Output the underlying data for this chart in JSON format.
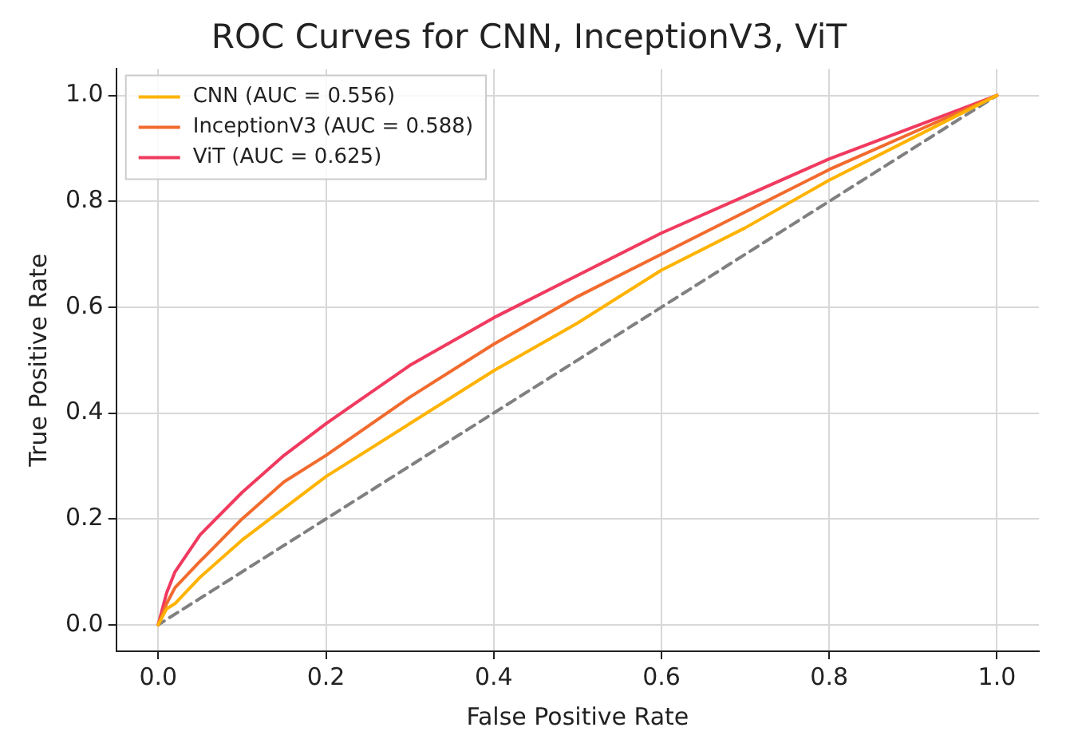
{
  "chart_data": {
    "type": "line",
    "title": "ROC Curves for CNN, InceptionV3, ViT",
    "xlabel": "False Positive Rate",
    "ylabel": "True Positive Rate",
    "x": [
      0,
      0.01,
      0.02,
      0.05,
      0.1,
      0.15,
      0.2,
      0.3,
      0.4,
      0.5,
      0.6,
      0.7,
      0.8,
      0.9,
      1
    ],
    "series": [
      {
        "name": "CNN (AUC = 0.556)",
        "color": "#ffb300",
        "values": [
          0,
          0.03,
          0.04,
          0.09,
          0.16,
          0.22,
          0.28,
          0.38,
          0.48,
          0.57,
          0.67,
          0.75,
          0.84,
          0.92,
          1
        ]
      },
      {
        "name": "InceptionV3 (AUC = 0.588)",
        "color": "#f26b2e",
        "values": [
          0,
          0.04,
          0.07,
          0.12,
          0.2,
          0.27,
          0.32,
          0.43,
          0.53,
          0.62,
          0.7,
          0.78,
          0.86,
          0.93,
          1
        ]
      },
      {
        "name": "ViT (AUC = 0.625)",
        "color": "#f03a5f",
        "values": [
          0,
          0.06,
          0.1,
          0.17,
          0.25,
          0.32,
          0.38,
          0.49,
          0.58,
          0.66,
          0.74,
          0.81,
          0.88,
          0.94,
          1
        ]
      },
      {
        "color": "#808080",
        "line_style": "dashed",
        "x": [
          0,
          1
        ],
        "values": [
          0,
          1
        ]
      }
    ],
    "xlim": [
      -0.05,
      1.05
    ],
    "ylim": [
      -0.05,
      1.05
    ],
    "xticks": [
      {
        "value": 0,
        "label": "0.0"
      },
      {
        "value": 0.2,
        "label": "0.2"
      },
      {
        "value": 0.4,
        "label": "0.4"
      },
      {
        "value": 0.6,
        "label": "0.6"
      },
      {
        "value": 0.8,
        "label": "0.8"
      },
      {
        "value": 1,
        "label": "1.0"
      }
    ],
    "yticks": [
      {
        "value": 0,
        "label": "0.0"
      },
      {
        "value": 0.2,
        "label": "0.2"
      },
      {
        "value": 0.4,
        "label": "0.4"
      },
      {
        "value": 0.6,
        "label": "0.6"
      },
      {
        "value": 0.8,
        "label": "0.8"
      },
      {
        "value": 1,
        "label": "1.0"
      }
    ],
    "grid": true,
    "legend": "top left",
    "line_style": "solid",
    "marker": "none"
  }
}
